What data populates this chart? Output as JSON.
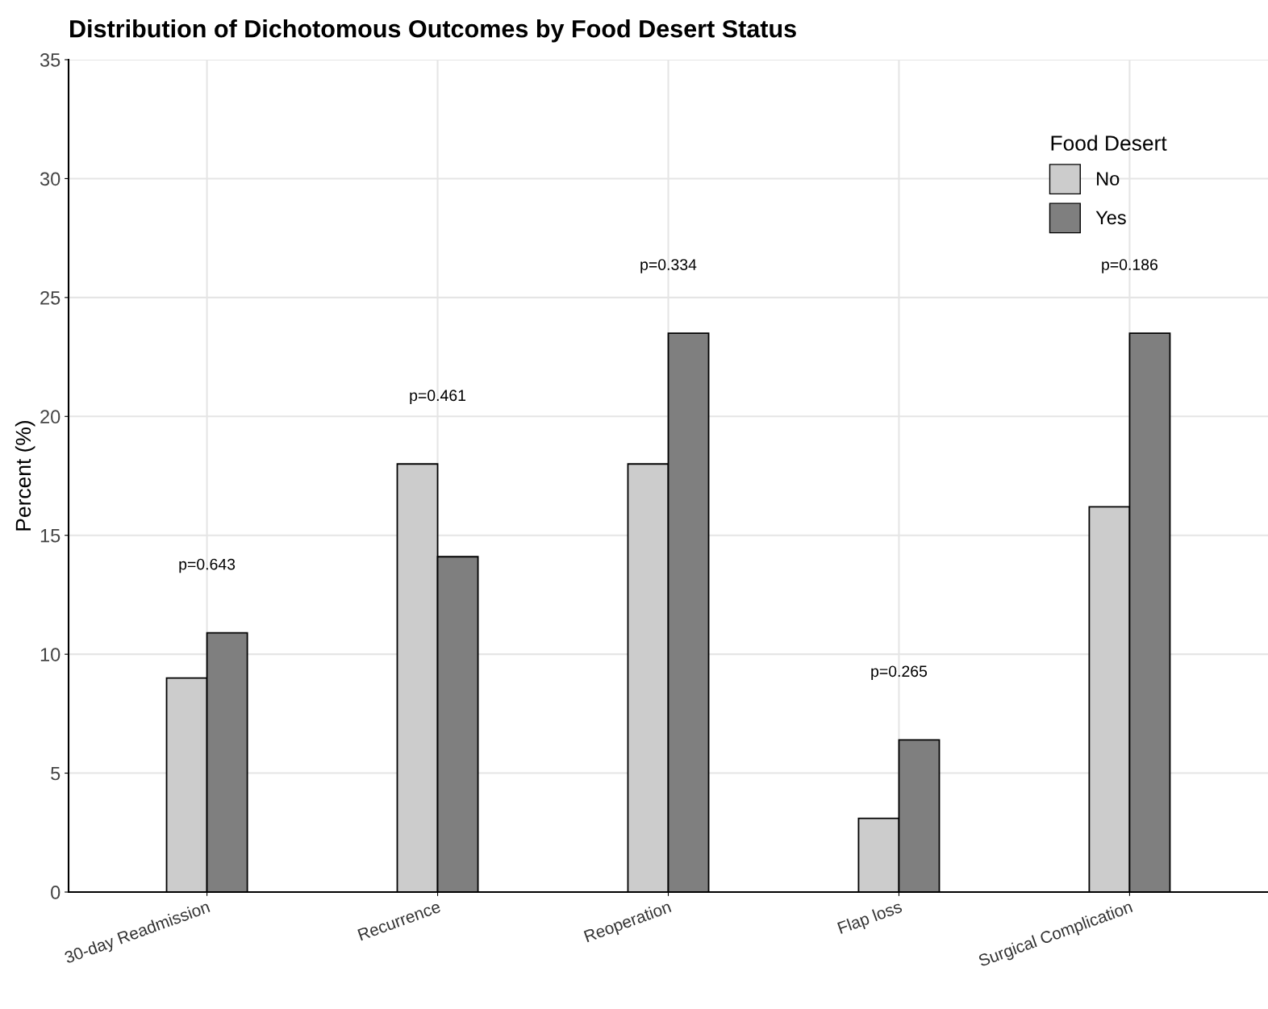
{
  "chart_data": {
    "type": "bar",
    "title": "Distribution of Dichotomous Outcomes by Food Desert Status",
    "ylabel": "Percent (%)",
    "legend_title": "Food Desert",
    "categories": [
      "30-day Readmission",
      "Recurrence",
      "Reoperation",
      "Flap loss",
      "Surgical Complication"
    ],
    "series": [
      {
        "name": "No",
        "color": "#cccccc",
        "values": [
          9.0,
          18.0,
          18.0,
          3.1,
          16.2
        ]
      },
      {
        "name": "Yes",
        "color": "#7f7f7f",
        "values": [
          10.9,
          14.1,
          23.5,
          6.4,
          23.5
        ]
      }
    ],
    "ylim": [
      0,
      35
    ],
    "yticks": [
      0,
      5,
      10,
      15,
      20,
      25,
      30,
      35
    ],
    "grid": true,
    "legend": "top right",
    "annotations": [
      "p=0.643",
      "p=0.461",
      "p=0.334",
      "p=0.265",
      "p=0.186"
    ]
  }
}
